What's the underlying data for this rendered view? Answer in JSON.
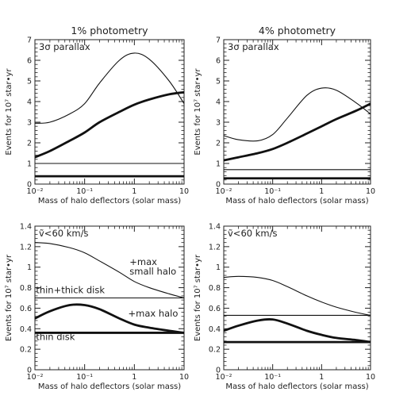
{
  "chart_data": [
    {
      "type": "line",
      "title": "1% photometry",
      "annotation": "3σ parallax",
      "xlabel": "Mass of halo deflectors (solar mass)",
      "ylabel": "Events for 10⁷ star•yr",
      "xscale": "log",
      "xlim": [
        0.01,
        10
      ],
      "ylim": [
        0,
        7
      ],
      "xticks": [
        "10⁻²",
        "10⁻¹",
        "1",
        "10"
      ],
      "yticks": [
        "0",
        "1",
        "2",
        "3",
        "4",
        "5",
        "6",
        "7"
      ],
      "series": [
        {
          "weight": "thin",
          "points": [
            [
              0.01,
              2.95
            ],
            [
              0.02,
              3.0
            ],
            [
              0.05,
              3.4
            ],
            [
              0.1,
              3.9
            ],
            [
              0.2,
              4.9
            ],
            [
              0.5,
              6.0
            ],
            [
              1,
              6.35
            ],
            [
              2,
              6.05
            ],
            [
              5,
              5.0
            ],
            [
              10,
              3.9
            ]
          ]
        },
        {
          "weight": "thick",
          "points": [
            [
              0.01,
              1.3
            ],
            [
              0.02,
              1.6
            ],
            [
              0.05,
              2.1
            ],
            [
              0.1,
              2.5
            ],
            [
              0.2,
              3.0
            ],
            [
              0.5,
              3.5
            ],
            [
              1,
              3.85
            ],
            [
              2,
              4.1
            ],
            [
              5,
              4.35
            ],
            [
              10,
              4.45
            ]
          ]
        },
        {
          "weight": "thin",
          "points": [
            [
              0.01,
              1.0
            ],
            [
              10,
              1.0
            ]
          ]
        },
        {
          "weight": "thick",
          "points": [
            [
              0.01,
              0.38
            ],
            [
              10,
              0.38
            ]
          ]
        }
      ]
    },
    {
      "type": "line",
      "title": "4% photometry",
      "annotation": "3σ parallax",
      "xlabel": "Mass of halo deflectors (solar mass)",
      "ylabel": "Events for 10⁷ star•yr",
      "xscale": "log",
      "xlim": [
        0.01,
        10
      ],
      "ylim": [
        0,
        7
      ],
      "xticks": [
        "10⁻²",
        "10⁻¹",
        "1",
        "10"
      ],
      "yticks": [
        "0",
        "1",
        "2",
        "3",
        "4",
        "5",
        "6",
        "7"
      ],
      "series": [
        {
          "weight": "thin",
          "points": [
            [
              0.01,
              2.35
            ],
            [
              0.02,
              2.15
            ],
            [
              0.05,
              2.1
            ],
            [
              0.1,
              2.4
            ],
            [
              0.2,
              3.2
            ],
            [
              0.5,
              4.3
            ],
            [
              1,
              4.65
            ],
            [
              2,
              4.55
            ],
            [
              5,
              3.95
            ],
            [
              10,
              3.4
            ]
          ]
        },
        {
          "weight": "thick",
          "points": [
            [
              0.01,
              1.15
            ],
            [
              0.02,
              1.3
            ],
            [
              0.05,
              1.5
            ],
            [
              0.1,
              1.7
            ],
            [
              0.2,
              2.0
            ],
            [
              0.5,
              2.45
            ],
            [
              1,
              2.8
            ],
            [
              2,
              3.15
            ],
            [
              5,
              3.55
            ],
            [
              10,
              3.9
            ]
          ]
        },
        {
          "weight": "thin",
          "points": [
            [
              0.01,
              0.7
            ],
            [
              10,
              0.7
            ]
          ]
        },
        {
          "weight": "thick",
          "points": [
            [
              0.01,
              0.28
            ],
            [
              10,
              0.28
            ]
          ]
        }
      ]
    },
    {
      "type": "line",
      "title": "",
      "annotation": "ṽ<60 km/s",
      "xlabel": "Mass of halo deflectors (solar mass)",
      "ylabel": "Events for 10⁷ star•yr",
      "xscale": "log",
      "xlim": [
        0.01,
        10
      ],
      "ylim": [
        0,
        1.4
      ],
      "xticks": [
        "10⁻²",
        "10⁻¹",
        "1",
        "10"
      ],
      "yticks": [
        "0",
        "0.2",
        "0.4",
        "0.6",
        "0.8",
        "1",
        "1.2",
        "1.4"
      ],
      "labels": [
        "+max",
        "small halo",
        "thin+thick disk",
        "+max halo",
        "thin disk"
      ],
      "series": [
        {
          "weight": "thin",
          "points": [
            [
              0.01,
              1.24
            ],
            [
              0.02,
              1.23
            ],
            [
              0.05,
              1.19
            ],
            [
              0.1,
              1.14
            ],
            [
              0.2,
              1.06
            ],
            [
              0.5,
              0.95
            ],
            [
              1,
              0.86
            ],
            [
              2,
              0.8
            ],
            [
              5,
              0.74
            ],
            [
              10,
              0.7
            ]
          ]
        },
        {
          "weight": "thin",
          "points": [
            [
              0.01,
              0.7
            ],
            [
              10,
              0.7
            ]
          ]
        },
        {
          "weight": "thick",
          "points": [
            [
              0.01,
              0.5
            ],
            [
              0.02,
              0.57
            ],
            [
              0.05,
              0.63
            ],
            [
              0.1,
              0.63
            ],
            [
              0.2,
              0.59
            ],
            [
              0.5,
              0.5
            ],
            [
              1,
              0.44
            ],
            [
              2,
              0.41
            ],
            [
              5,
              0.38
            ],
            [
              10,
              0.36
            ]
          ]
        },
        {
          "weight": "thick",
          "points": [
            [
              0.01,
              0.36
            ],
            [
              10,
              0.36
            ]
          ]
        }
      ]
    },
    {
      "type": "line",
      "title": "",
      "annotation": "ṽ<60 km/s",
      "xlabel": "Mass of halo deflectors (solar mass)",
      "ylabel": "Events for 10⁷ star•yr",
      "xscale": "log",
      "xlim": [
        0.01,
        10
      ],
      "ylim": [
        0,
        1.4
      ],
      "xticks": [
        "10⁻²",
        "10⁻¹",
        "1",
        "10"
      ],
      "yticks": [
        "0",
        "0.2",
        "0.4",
        "0.6",
        "0.8",
        "1",
        "1.2",
        "1.4"
      ],
      "series": [
        {
          "weight": "thin",
          "points": [
            [
              0.01,
              0.9
            ],
            [
              0.02,
              0.91
            ],
            [
              0.05,
              0.9
            ],
            [
              0.1,
              0.87
            ],
            [
              0.2,
              0.81
            ],
            [
              0.5,
              0.72
            ],
            [
              1,
              0.66
            ],
            [
              2,
              0.61
            ],
            [
              5,
              0.56
            ],
            [
              10,
              0.53
            ]
          ]
        },
        {
          "weight": "thin",
          "points": [
            [
              0.01,
              0.53
            ],
            [
              10,
              0.53
            ]
          ]
        },
        {
          "weight": "thick",
          "points": [
            [
              0.01,
              0.38
            ],
            [
              0.02,
              0.43
            ],
            [
              0.05,
              0.48
            ],
            [
              0.1,
              0.49
            ],
            [
              0.2,
              0.45
            ],
            [
              0.5,
              0.38
            ],
            [
              1,
              0.34
            ],
            [
              2,
              0.31
            ],
            [
              5,
              0.29
            ],
            [
              10,
              0.27
            ]
          ]
        },
        {
          "weight": "thick",
          "points": [
            [
              0.01,
              0.27
            ],
            [
              10,
              0.27
            ]
          ]
        }
      ]
    }
  ]
}
